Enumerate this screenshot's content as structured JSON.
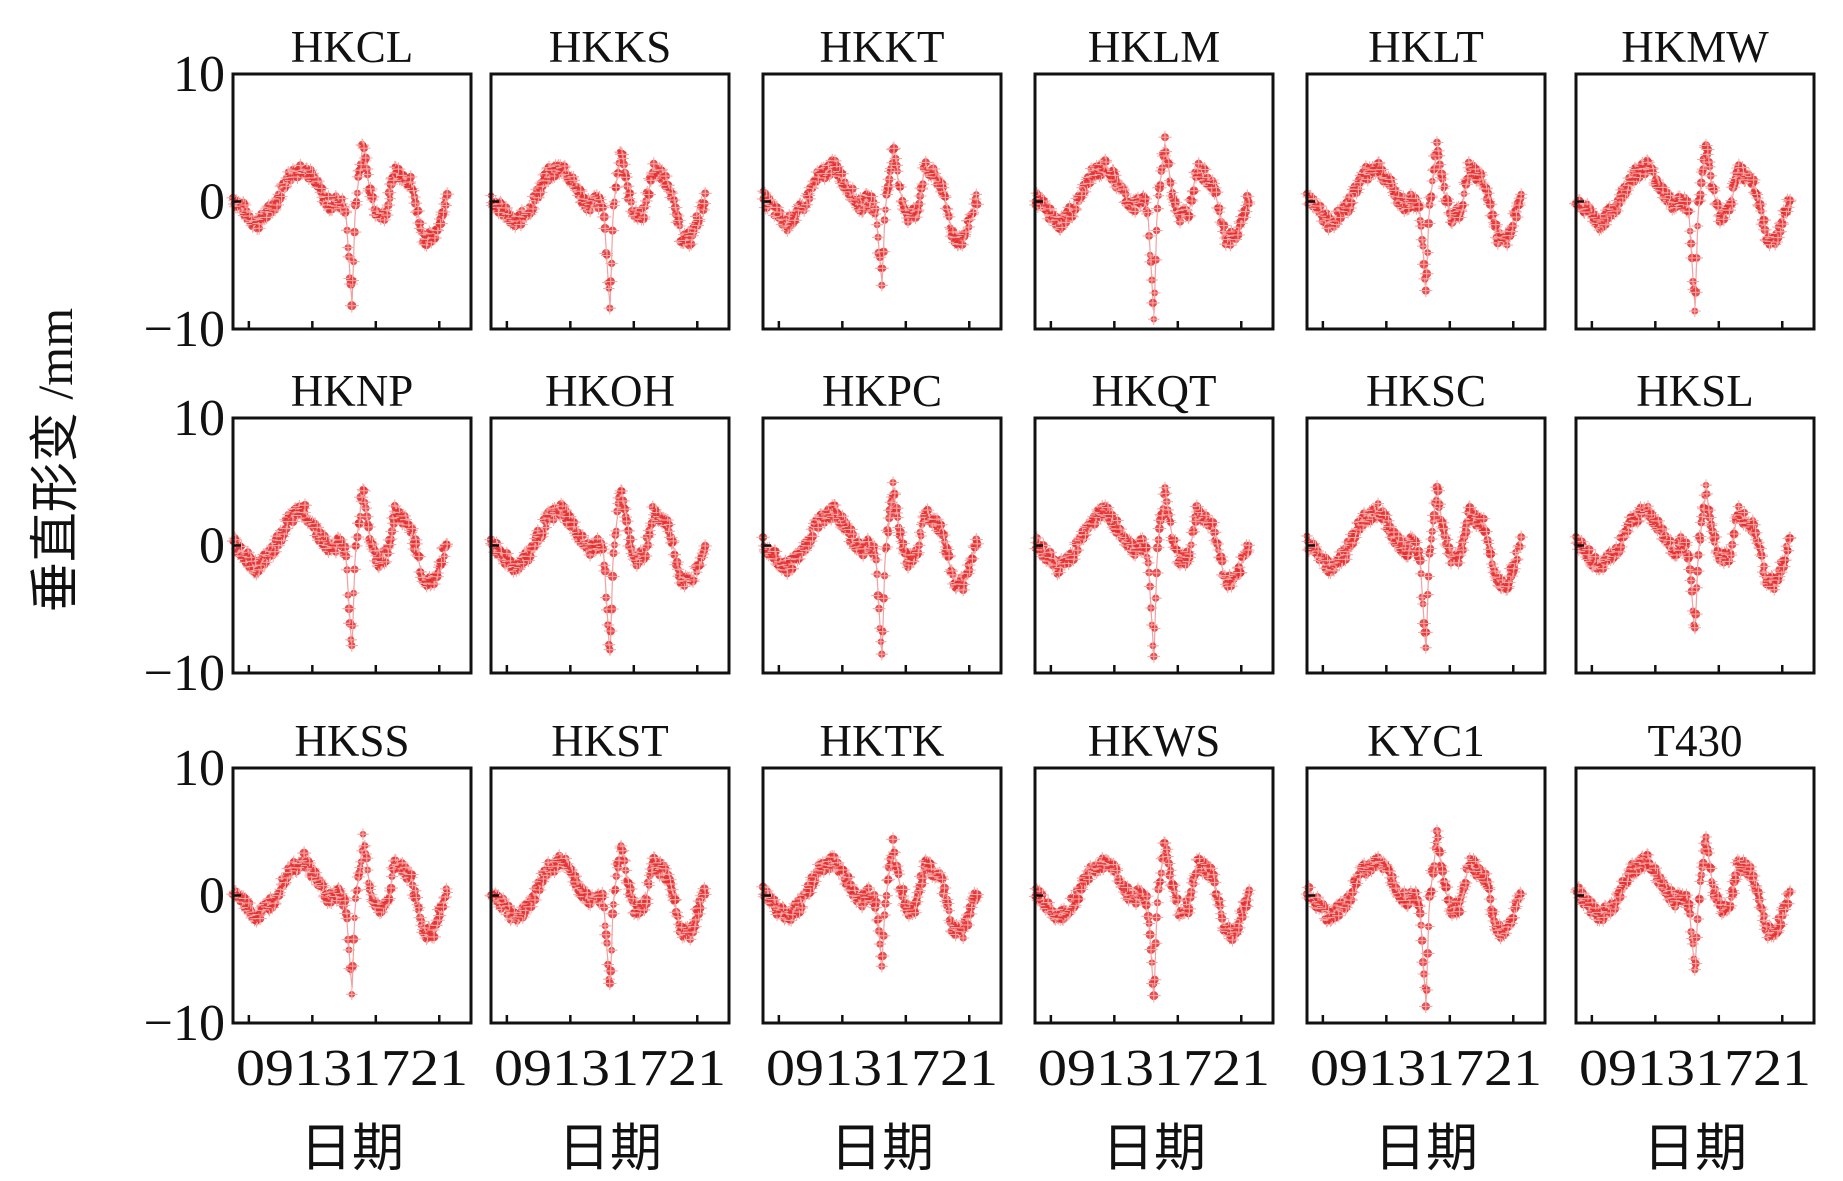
{
  "figure": {
    "ylabel": "垂直形变 /mm",
    "xlabel": "日期"
  },
  "chart_data": {
    "type": "scatter",
    "layout": "3x6 small multiples",
    "ylim": [
      -10,
      10
    ],
    "yticks": [
      "10",
      "0",
      "−10"
    ],
    "xticks": [
      "09",
      "13",
      "17",
      "21"
    ],
    "xlim": [
      8,
      23
    ],
    "grid": false,
    "series_color": "#e52e2e",
    "base_curve": {
      "x": [
        8.0,
        9.5,
        10.5,
        11.5,
        12.5,
        13.3,
        13.9,
        14.3,
        14.6,
        15.1,
        15.5,
        15.7,
        16.2,
        16.6,
        17.1,
        17.7,
        18.2,
        19.2,
        20.0,
        20.6,
        21.0,
        21.5
      ],
      "y": [
        0.3,
        -1.8,
        -0.5,
        2.0,
        2.8,
        1.2,
        0.0,
        -0.4,
        0.2,
        -0.5,
        -8.5,
        -0.6,
        4.2,
        1.0,
        -1.2,
        -0.8,
        2.6,
        1.5,
        -2.8,
        -3.0,
        -1.5,
        0.3
      ]
    },
    "panels": [
      {
        "name": "HKCL",
        "peak": 4.6,
        "dip": -8.3
      },
      {
        "name": "HKKS",
        "peak": 4.4,
        "dip": -8.6
      },
      {
        "name": "HKKT",
        "peak": 4.2,
        "dip": -6.6
      },
      {
        "name": "HKLM",
        "peak": 4.7,
        "dip": -9.2
      },
      {
        "name": "HKLT",
        "peak": 4.3,
        "dip": -6.8
      },
      {
        "name": "HKMW",
        "peak": 4.7,
        "dip": -8.6
      },
      {
        "name": "HKNP",
        "peak": 4.6,
        "dip": -8.3
      },
      {
        "name": "HKOH",
        "peak": 4.7,
        "dip": -9.0
      },
      {
        "name": "HKPC",
        "peak": 4.6,
        "dip": -8.9
      },
      {
        "name": "HKQT",
        "peak": 4.6,
        "dip": -8.9
      },
      {
        "name": "HKSC",
        "peak": 4.4,
        "dip": -8.5
      },
      {
        "name": "HKSL",
        "peak": 4.4,
        "dip": -7.2
      },
      {
        "name": "HKSS",
        "peak": 4.4,
        "dip": -7.6
      },
      {
        "name": "HKST",
        "peak": 4.4,
        "dip": -7.6
      },
      {
        "name": "HKTK",
        "peak": 4.0,
        "dip": -5.3
      },
      {
        "name": "HKWS",
        "peak": 4.4,
        "dip": -8.1
      },
      {
        "name": "KYC1",
        "peak": 4.6,
        "dip": -8.8
      },
      {
        "name": "T430",
        "peak": 4.4,
        "dip": -6.2
      }
    ]
  }
}
